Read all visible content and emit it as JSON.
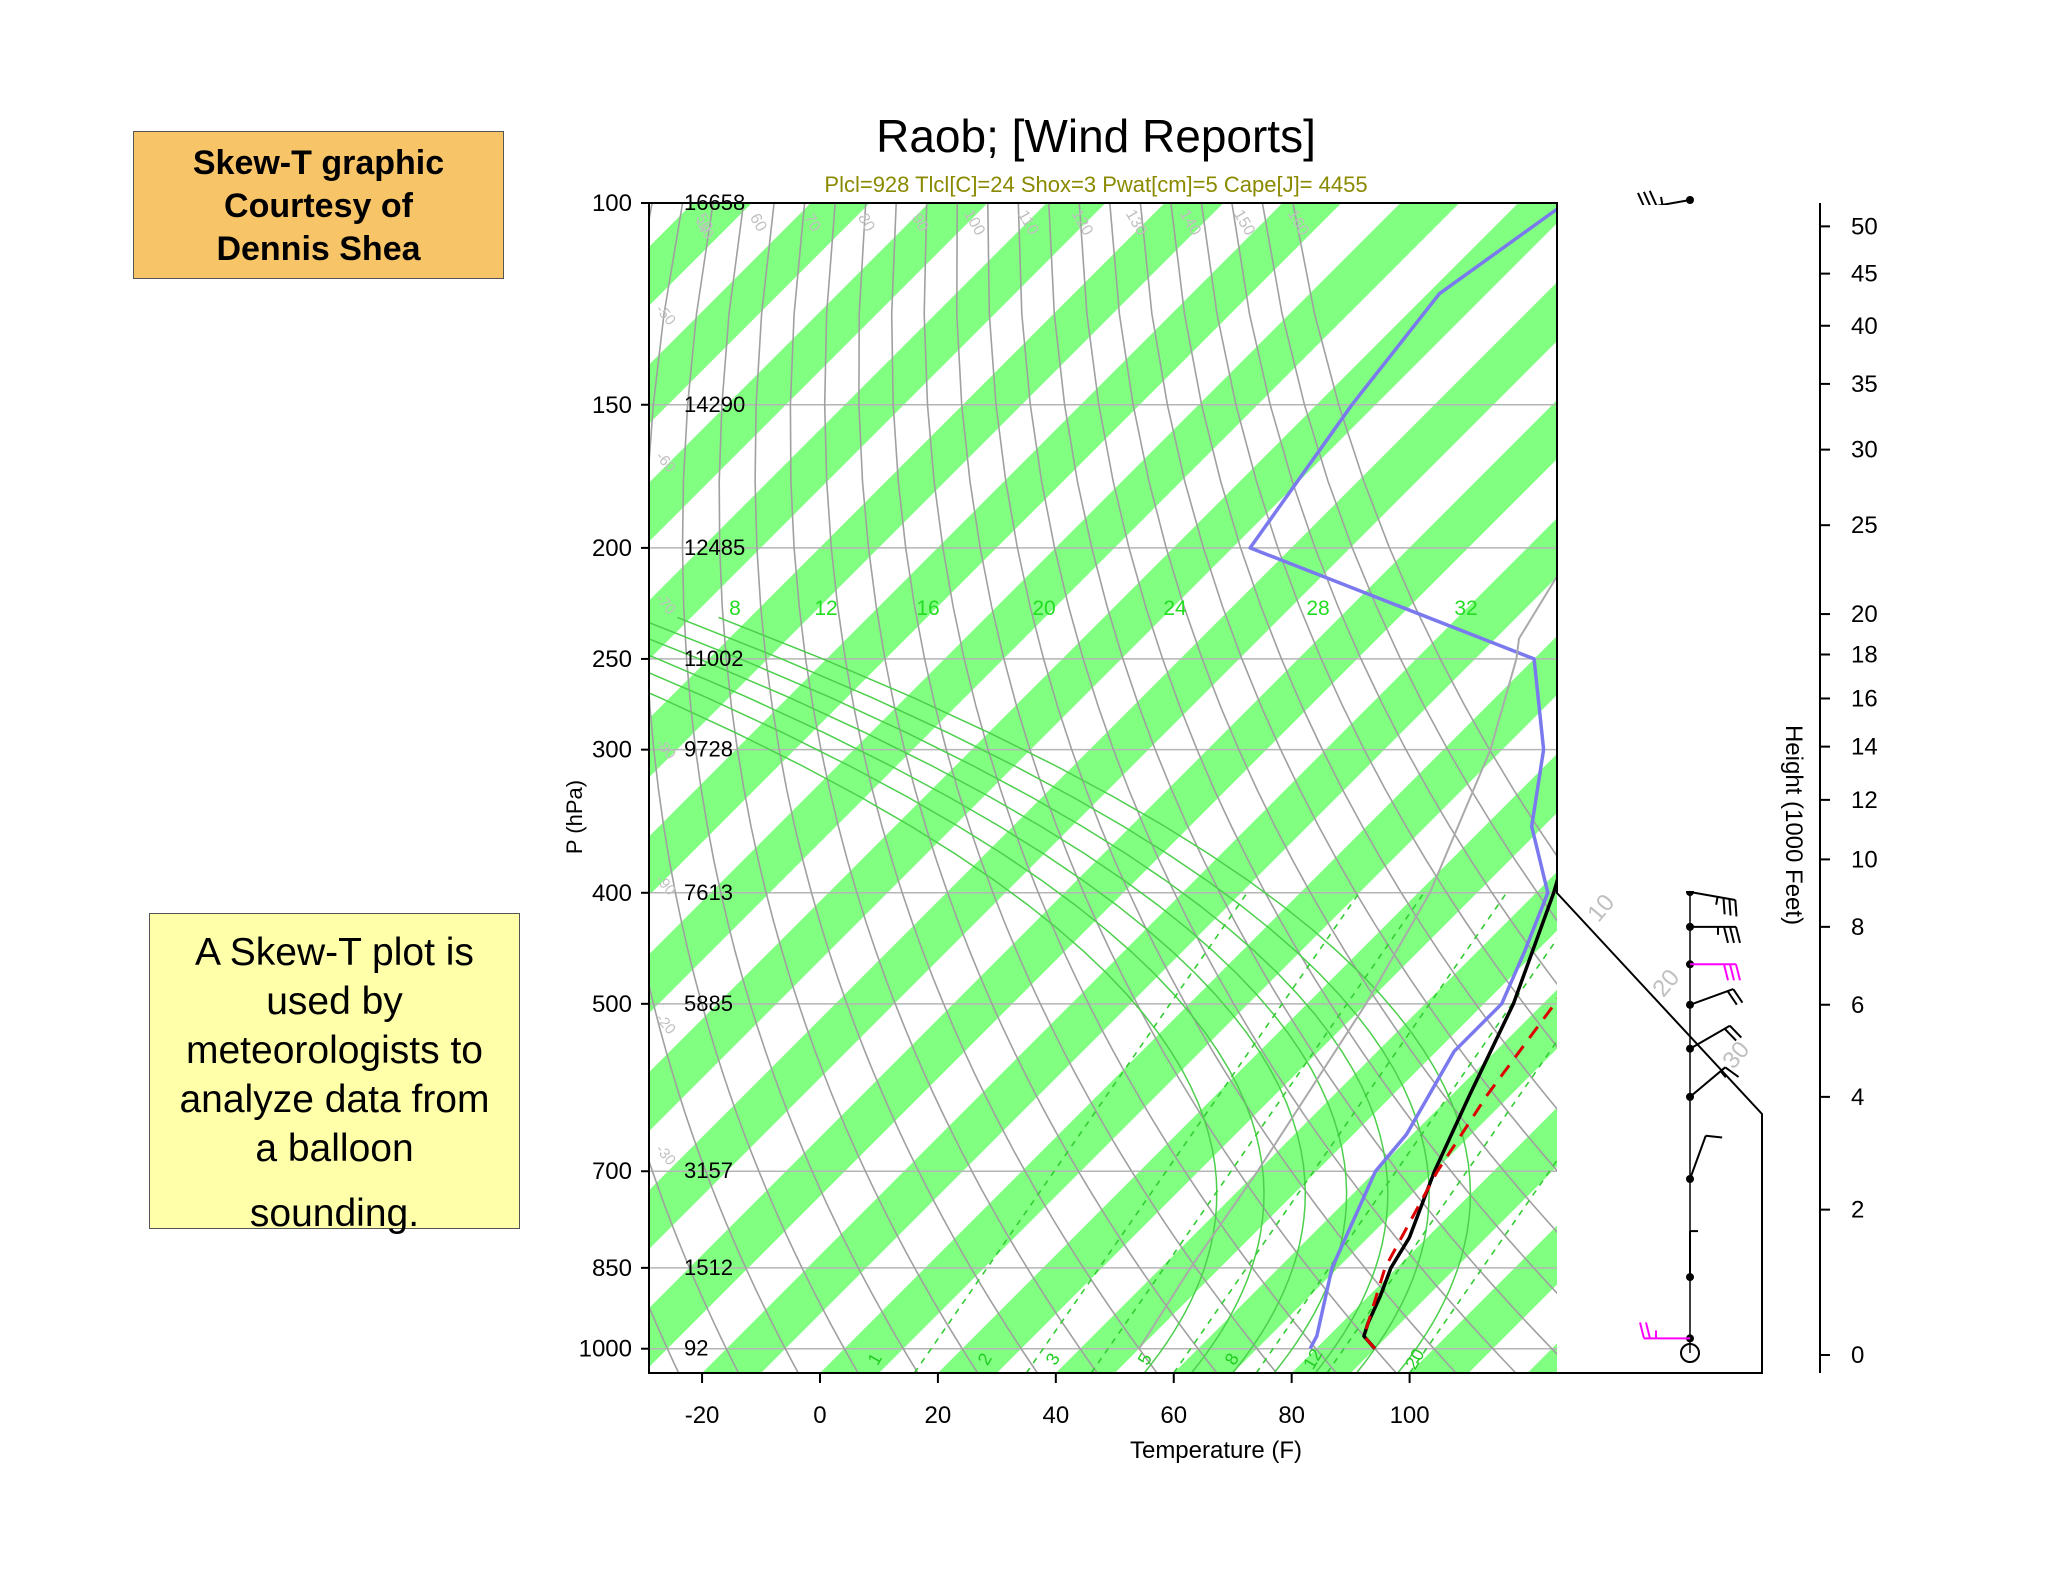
{
  "credit_box": {
    "lines": [
      "Skew-T graphic",
      "Courtesy of",
      "Dennis Shea"
    ]
  },
  "description_box": {
    "lines": [
      "A Skew-T plot is",
      "used by",
      "meteorologists to",
      "analyze data from",
      "a balloon",
      "sounding."
    ]
  },
  "chart_data": {
    "type": "skew-t",
    "title": "Raob; [Wind Reports]",
    "subtitle": "Plcl=928 Tlcl[C]=24 Shox=3 Pwat[cm]=5 Cape[J]= 4455",
    "xlabel": "Temperature (F)",
    "ylabel": "P (hPa)",
    "y2label": "Height (1000 Feet)",
    "x_ticks": [
      -20,
      0,
      20,
      40,
      60,
      80,
      100
    ],
    "xlim": [
      -29,
      125
    ],
    "p_ticks": [
      100,
      150,
      200,
      250,
      300,
      400,
      500,
      700,
      850,
      1000
    ],
    "plim": [
      100,
      1050
    ],
    "heights_m": [
      {
        "p": 100,
        "z": "16658"
      },
      {
        "p": 150,
        "z": "14290"
      },
      {
        "p": 200,
        "z": "12485"
      },
      {
        "p": 250,
        "z": "11002"
      },
      {
        "p": 300,
        "z": "9728"
      },
      {
        "p": 400,
        "z": "7613"
      },
      {
        "p": 500,
        "z": "5885"
      },
      {
        "p": 700,
        "z": "3157"
      },
      {
        "p": 850,
        "z": "1512"
      },
      {
        "p": 1000,
        "z": "92"
      }
    ],
    "height_ticks": [
      0,
      2,
      4,
      6,
      8,
      10,
      12,
      14,
      16,
      18,
      20,
      25,
      30,
      35,
      40,
      45,
      50
    ],
    "mixing_ratio_labels": [
      "1",
      "2",
      "3",
      "5",
      "8",
      "12",
      "20"
    ],
    "moist_adiabat_labels": [
      "8",
      "12",
      "16",
      "20",
      "24",
      "28",
      "32"
    ],
    "dry_adiabat_labels": [
      "50",
      "60",
      "70",
      "80",
      "90",
      "100",
      "110",
      "120",
      "130",
      "140",
      "150",
      "160"
    ],
    "isotherm_labels_right": [
      "-30",
      "-20",
      "-10",
      "0",
      "10",
      "20",
      "30"
    ],
    "isotherm_labels_left": [
      "-40",
      "-50",
      "-60",
      "-70",
      "-80",
      "-90",
      "-20",
      "-30"
    ],
    "series": [
      {
        "role": "temperature",
        "color": "#000000",
        "points": [
          [
            1000,
            90
          ],
          [
            975,
            86
          ],
          [
            950,
            84.5
          ],
          [
            900,
            82
          ],
          [
            850,
            79
          ],
          [
            800,
            77
          ],
          [
            700,
            70
          ],
          [
            600,
            63
          ],
          [
            500,
            55
          ],
          [
            400,
            43
          ],
          [
            350,
            35
          ],
          [
            300,
            24
          ],
          [
            250,
            11
          ],
          [
            200,
            -4
          ],
          [
            175,
            -13
          ],
          [
            150,
            -22
          ],
          [
            125,
            -32
          ],
          [
            113,
            -31
          ],
          [
            100,
            -28
          ]
        ]
      },
      {
        "role": "dewpoint",
        "color": "#7a7aee",
        "points": [
          [
            1000,
            79
          ],
          [
            975,
            78
          ],
          [
            850,
            69
          ],
          [
            700,
            60
          ],
          [
            650,
            59
          ],
          [
            550,
            53
          ],
          [
            500,
            53
          ],
          [
            450,
            48
          ],
          [
            400,
            42
          ],
          [
            350,
            28
          ],
          [
            300,
            17
          ],
          [
            250,
            0
          ],
          [
            200,
            -67
          ],
          [
            150,
            -74
          ],
          [
            120,
            -78
          ],
          [
            100,
            -72
          ]
        ]
      },
      {
        "role": "parcel",
        "color": "#dd0000",
        "points": [
          [
            1000,
            90
          ],
          [
            975,
            86
          ],
          [
            950,
            84.5
          ],
          [
            850,
            78
          ],
          [
            700,
            70.5
          ],
          [
            600,
            66
          ],
          [
            500,
            62
          ],
          [
            400,
            55
          ],
          [
            300,
            39
          ],
          [
            250,
            24
          ],
          [
            200,
            5
          ],
          [
            150,
            -15
          ],
          [
            125,
            -26
          ]
        ]
      },
      {
        "role": "virtual-temp",
        "color": "#aaaaaa",
        "points": [
          [
            1000,
            50
          ],
          [
            850,
            45
          ],
          [
            700,
            40
          ],
          [
            500,
            30
          ],
          [
            400,
            22
          ],
          [
            300,
            8
          ],
          [
            250,
            -3
          ],
          [
            240,
            -6
          ],
          [
            200,
            -12
          ],
          [
            150,
            -17
          ],
          [
            120,
            -21
          ]
        ]
      }
    ],
    "wind_barbs": [
      {
        "h": 0.2,
        "speed": 25,
        "dir": 90,
        "color": "#ff00ff"
      },
      {
        "h": 1,
        "speed": 5,
        "dir": 180
      },
      {
        "h": 2.5,
        "speed": 10,
        "dir": 200
      },
      {
        "h": 4,
        "speed": 15,
        "dir": 230
      },
      {
        "h": 5,
        "speed": 20,
        "dir": 240
      },
      {
        "h": 6,
        "speed": 20,
        "dir": 250
      },
      {
        "h": 7,
        "speed": 30,
        "dir": 270,
        "color": "#ff00ff"
      },
      {
        "h": 8,
        "speed": 35,
        "dir": 270
      },
      {
        "h": 9,
        "speed": 35,
        "dir": 280
      },
      {
        "h": 10,
        "speed": 35,
        "dir": 285
      },
      {
        "h": 11,
        "speed": 35,
        "dir": 290
      },
      {
        "h": 12,
        "speed": 35,
        "dir": 295
      },
      {
        "h": 14,
        "speed": 55,
        "dir": 300
      },
      {
        "h": 16,
        "speed": 55,
        "dir": 320
      },
      {
        "h": 18,
        "speed": 55,
        "dir": 330
      },
      {
        "h": 20,
        "speed": 55,
        "dir": 340
      },
      {
        "h": 23,
        "speed": 50,
        "dir": 345
      },
      {
        "h": 26,
        "speed": 40,
        "dir": 350,
        "color": "#ff00ff"
      },
      {
        "h": 29,
        "speed": 45,
        "dir": 0
      },
      {
        "h": 33,
        "speed": 45,
        "dir": 10
      },
      {
        "h": 38,
        "speed": 40,
        "dir": 20
      },
      {
        "h": 42,
        "speed": 45,
        "dir": 30
      },
      {
        "h": 46,
        "speed": 40,
        "dir": 60
      },
      {
        "h": 48,
        "speed": 35,
        "dir": 70
      },
      {
        "h": 53,
        "speed": 35,
        "dir": 80
      }
    ],
    "colors": {
      "moist_bands": "#80ff80",
      "dry_adiabat": "#a0a0a0",
      "moist_adiabat": "#4ccf4c",
      "mixing_ratio": "#33cc33",
      "subtitle": "#8a8a00",
      "tick_label_grey": "#b4b4b4"
    }
  }
}
